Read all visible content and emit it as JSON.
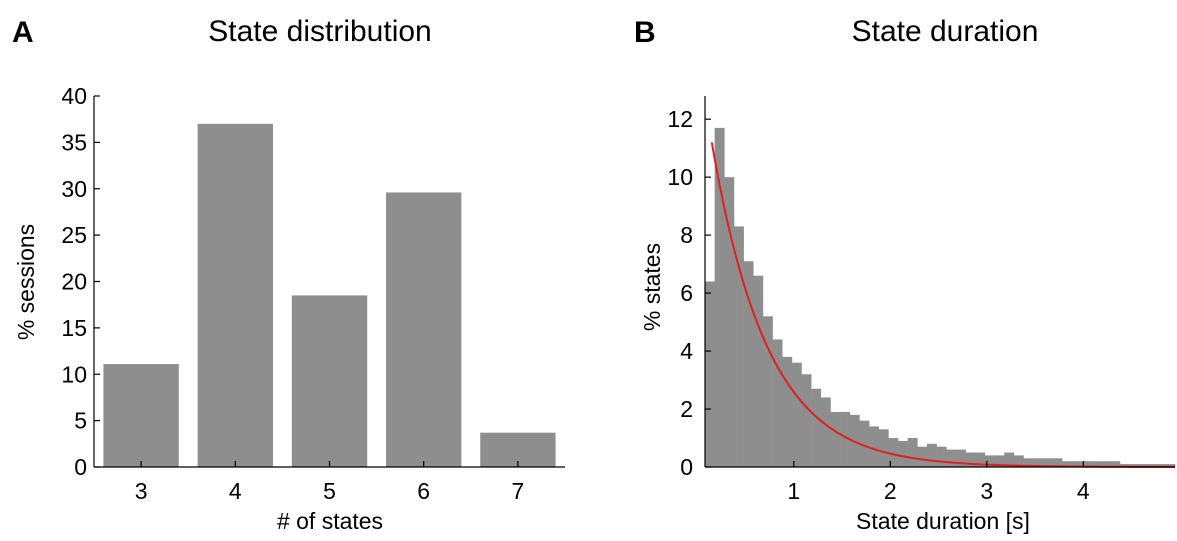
{
  "chart_data": [
    {
      "panel_label": "A",
      "type": "bar",
      "title": "State distribution",
      "xlabel": "# of states",
      "ylabel": "% sessions",
      "categories": [
        "3",
        "4",
        "5",
        "6",
        "7"
      ],
      "values": [
        11.1,
        37.0,
        18.5,
        29.6,
        3.7
      ],
      "ylim": [
        0,
        40
      ],
      "yticks": [
        "0",
        "5",
        "10",
        "15",
        "20",
        "25",
        "30",
        "35",
        "40"
      ],
      "bar_color": "#8e8e8e",
      "grid": false,
      "legend": "none"
    },
    {
      "panel_label": "B",
      "type": "bar",
      "title": "State duration",
      "xlabel": "State duration [s]",
      "ylabel": "% states",
      "xlim": [
        0.08,
        4.95
      ],
      "ylim": [
        0,
        12.8
      ],
      "xticks": [
        "1",
        "2",
        "3",
        "4"
      ],
      "yticks": [
        "0",
        "2",
        "4",
        "6",
        "8",
        "10",
        "12"
      ],
      "bin_width": 0.1,
      "bin_starts": [
        0.08,
        0.18,
        0.28,
        0.38,
        0.48,
        0.58,
        0.68,
        0.78,
        0.88,
        0.98,
        1.08,
        1.18,
        1.28,
        1.38,
        1.48,
        1.58,
        1.68,
        1.78,
        1.88,
        1.98,
        2.08,
        2.18,
        2.28,
        2.38,
        2.48,
        2.58,
        2.68,
        2.78,
        2.88,
        2.98,
        3.08,
        3.18,
        3.28,
        3.38,
        3.48,
        3.58,
        3.68,
        3.78,
        3.88,
        3.98,
        4.08,
        4.18,
        4.28,
        4.38,
        4.48,
        4.58,
        4.68,
        4.78,
        4.88
      ],
      "values": [
        6.4,
        11.7,
        10.0,
        8.3,
        7.1,
        6.6,
        5.2,
        4.4,
        3.8,
        3.6,
        3.2,
        2.7,
        2.4,
        1.9,
        1.9,
        1.8,
        1.6,
        1.4,
        1.3,
        1.0,
        0.9,
        1.0,
        0.7,
        0.8,
        0.7,
        0.6,
        0.6,
        0.5,
        0.5,
        0.4,
        0.4,
        0.5,
        0.4,
        0.3,
        0.3,
        0.3,
        0.3,
        0.2,
        0.2,
        0.2,
        0.2,
        0.2,
        0.2,
        0.1,
        0.1,
        0.1,
        0.1,
        0.1,
        0.1
      ],
      "bar_color": "#8e8e8e",
      "fit": {
        "type": "exponential",
        "x_range": [
          0.15,
          4.95
        ],
        "amplitude": 11.2,
        "x0": 0.15,
        "tau": 0.58,
        "color": "#e02020"
      },
      "grid": false,
      "legend": "none"
    }
  ]
}
